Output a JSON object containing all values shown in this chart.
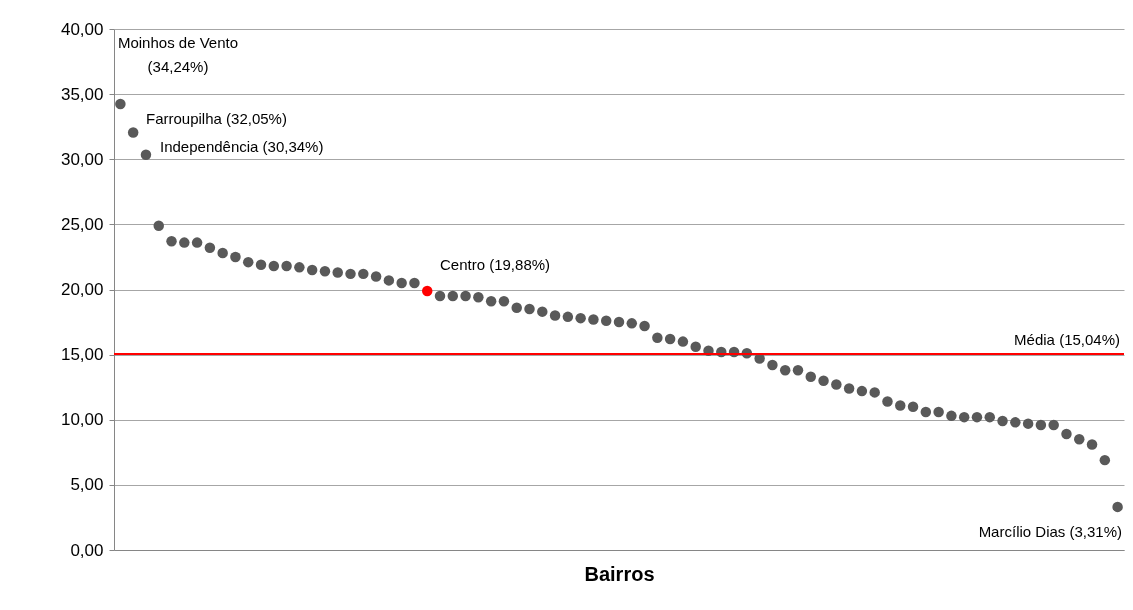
{
  "chart_data": {
    "type": "scatter",
    "xlabel": "Bairros",
    "categories": [
      null,
      null,
      null,
      null,
      null,
      null,
      null,
      null,
      null,
      null,
      null,
      null,
      null,
      null,
      null,
      null,
      null,
      null,
      null,
      null,
      null,
      null,
      null,
      null,
      null,
      null,
      null,
      null,
      null,
      null,
      null,
      null,
      null,
      null,
      null,
      null,
      null,
      null,
      null,
      null,
      null,
      null,
      null,
      null,
      null,
      null,
      null,
      null,
      null,
      null,
      null,
      null,
      null,
      null,
      null,
      null,
      null,
      null,
      null,
      null,
      null,
      null,
      null,
      null,
      null,
      null,
      null,
      null,
      null,
      null,
      null,
      null,
      null,
      null,
      null,
      null,
      null,
      null,
      null
    ],
    "values": [
      34.24,
      32.05,
      30.34,
      24.9,
      23.7,
      23.6,
      23.6,
      23.2,
      22.8,
      22.5,
      22.1,
      21.9,
      21.8,
      21.8,
      21.7,
      21.5,
      21.4,
      21.3,
      21.2,
      21.2,
      21.0,
      20.7,
      20.5,
      20.5,
      19.88,
      19.5,
      19.5,
      19.5,
      19.4,
      19.1,
      19.1,
      18.6,
      18.5,
      18.3,
      18.0,
      17.9,
      17.8,
      17.7,
      17.6,
      17.5,
      17.4,
      17.2,
      16.3,
      16.2,
      16.0,
      15.6,
      15.3,
      15.2,
      15.2,
      15.1,
      14.7,
      14.2,
      13.8,
      13.8,
      13.3,
      13.0,
      12.7,
      12.4,
      12.2,
      12.1,
      11.4,
      11.1,
      11.0,
      10.6,
      10.6,
      10.3,
      10.2,
      10.2,
      10.2,
      9.9,
      9.8,
      9.7,
      9.6,
      9.6,
      8.9,
      8.5,
      8.1,
      6.9,
      3.31
    ],
    "colors": [
      "#595959",
      "#595959",
      "#595959",
      "#595959",
      "#595959",
      "#595959",
      "#595959",
      "#595959",
      "#595959",
      "#595959",
      "#595959",
      "#595959",
      "#595959",
      "#595959",
      "#595959",
      "#595959",
      "#595959",
      "#595959",
      "#595959",
      "#595959",
      "#595959",
      "#595959",
      "#595959",
      "#595959",
      "#ff0000",
      "#595959",
      "#595959",
      "#595959",
      "#595959",
      "#595959",
      "#595959",
      "#595959",
      "#595959",
      "#595959",
      "#595959",
      "#595959",
      "#595959",
      "#595959",
      "#595959",
      "#595959",
      "#595959",
      "#595959",
      "#595959",
      "#595959",
      "#595959",
      "#595959",
      "#595959",
      "#595959",
      "#595959",
      "#595959",
      "#595959",
      "#595959",
      "#595959",
      "#595959",
      "#595959",
      "#595959",
      "#595959",
      "#595959",
      "#595959",
      "#595959",
      "#595959",
      "#595959",
      "#595959",
      "#595959",
      "#595959",
      "#595959",
      "#595959",
      "#595959",
      "#595959",
      "#595959",
      "#595959",
      "#595959",
      "#595959",
      "#595959",
      "#595959",
      "#595959",
      "#595959",
      "#595959",
      "#595959"
    ],
    "marker": "circle",
    "ylim": [
      0,
      40
    ],
    "yticks": [
      {
        "value": 0,
        "label": "0,00"
      },
      {
        "value": 5,
        "label": "5,00"
      },
      {
        "value": 10,
        "label": "10,00"
      },
      {
        "value": 15,
        "label": "15,00"
      },
      {
        "value": 20,
        "label": "20,00"
      },
      {
        "value": 25,
        "label": "25,00"
      },
      {
        "value": 30,
        "label": "30,00"
      },
      {
        "value": 35,
        "label": "35,00"
      },
      {
        "value": 40,
        "label": "40,00"
      }
    ],
    "grid": "y",
    "ref_lines": [
      {
        "axis": "y",
        "value": 15.04,
        "label": "Média (15,04%)",
        "color": "#ff0000"
      }
    ],
    "annotations": [
      "Moinhos de Vento\n(34,24%)",
      "Farroupilha (32,05%)",
      "Independência (30,34%)",
      "Centro (19,88%)",
      "Marcílio Dias (3,31%)"
    ]
  }
}
